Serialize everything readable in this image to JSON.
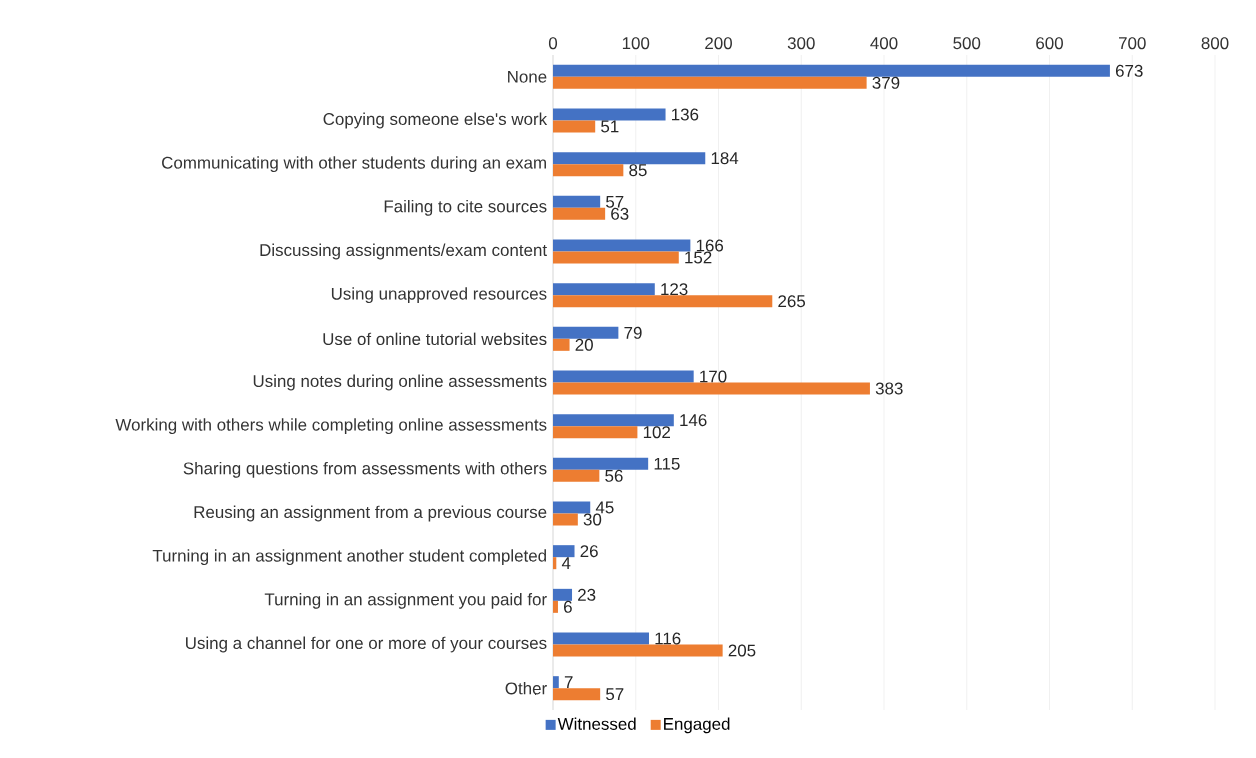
{
  "chart_data": {
    "type": "bar",
    "orientation": "horizontal",
    "categories": [
      "None",
      "Copying someone else's work",
      "Communicating with other students during an exam",
      "Failing to cite sources",
      "Discussing assignments/exam content",
      "Using unapproved resources",
      "Use of online tutorial websites",
      "Using notes during online assessments",
      "Working with others while completing online assessments",
      "Sharing questions from assessments with others",
      "Reusing an assignment from a previous course",
      "Turning in an assignment another student completed",
      "Turning in an assignment you paid for",
      "Using a channel for one or more of your courses",
      "Other"
    ],
    "series": [
      {
        "name": "Witnessed",
        "color": "#4472c4",
        "values": [
          673,
          136,
          184,
          57,
          166,
          123,
          79,
          170,
          146,
          115,
          45,
          26,
          23,
          116,
          7
        ]
      },
      {
        "name": "Engaged",
        "color": "#ed7d31",
        "values": [
          379,
          51,
          85,
          63,
          152,
          265,
          20,
          383,
          102,
          56,
          30,
          4,
          6,
          205,
          57
        ]
      }
    ],
    "xlim": [
      0,
      800
    ],
    "xticks": [
      0,
      100,
      200,
      300,
      400,
      500,
      600,
      700,
      800
    ],
    "grid": "x",
    "legend": "bottom",
    "data_labels": true
  }
}
